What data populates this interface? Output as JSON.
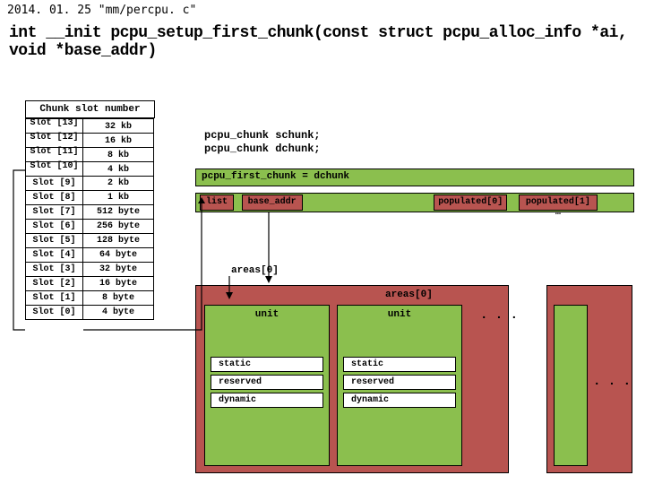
{
  "header": {
    "date_file": "2014. 01. 25 \"mm/percpu. c\"",
    "signature": "int __init pcpu_setup_first_chunk(const struct pcpu_alloc_info *ai, void *base_addr)"
  },
  "chunk_label": "Chunk slot number",
  "slots": [
    {
      "name": "Slot [13]",
      "size": "32 kb"
    },
    {
      "name": "Slot [12]",
      "size": "16 kb"
    },
    {
      "name": "Slot [11]",
      "size": "8 kb"
    },
    {
      "name": "Slot [10]",
      "size": "4 kb"
    },
    {
      "name": "Slot [9]",
      "size": "2 kb"
    },
    {
      "name": "Slot [8]",
      "size": "1 kb"
    },
    {
      "name": "Slot [7]",
      "size": "512 byte"
    },
    {
      "name": "Slot [6]",
      "size": "256 byte"
    },
    {
      "name": "Slot [5]",
      "size": "128 byte"
    },
    {
      "name": "Slot [4]",
      "size": "64 byte"
    },
    {
      "name": "Slot [3]",
      "size": "32 byte"
    },
    {
      "name": "Slot [2]",
      "size": "16 byte"
    },
    {
      "name": "Slot [1]",
      "size": "8 byte"
    },
    {
      "name": "Slot [0]",
      "size": "4 byte"
    }
  ],
  "decl": {
    "line1": "pcpu_chunk schunk;",
    "line2": "pcpu_chunk dchunk;"
  },
  "first_chunk": "pcpu_first_chunk = dchunk",
  "fields": {
    "list": "list",
    "base_addr": "base_addr",
    "pop0": "populated[0]",
    "pop1": "populated[1] …"
  },
  "areas": {
    "a0": "areas[0]",
    "ax": "areas[0]"
  },
  "unit": {
    "label": "unit",
    "s": "static",
    "r": "reserved",
    "d": "dynamic"
  },
  "dots": ". . .",
  "dots2": ". . .",
  "colors": {
    "green": "#8bbf4e",
    "red": "#b85450",
    "bg": "#ffffff"
  }
}
